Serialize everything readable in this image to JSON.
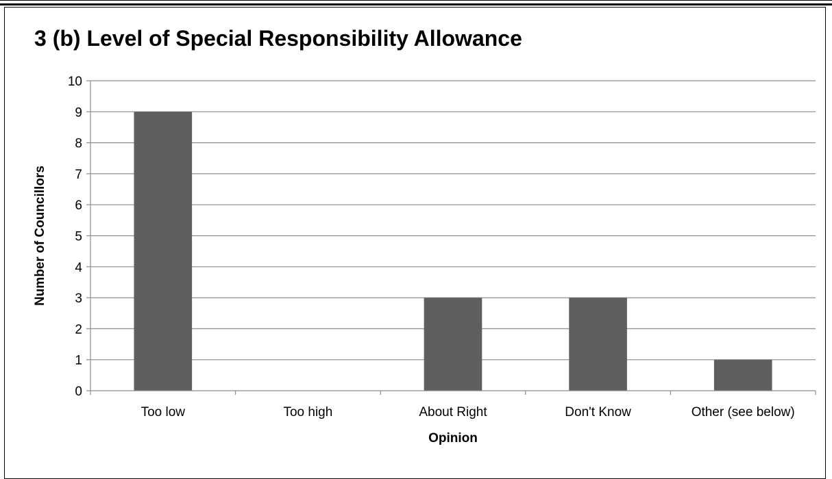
{
  "chart_data": {
    "type": "bar",
    "title": "3 (b) Level of Special Responsibility Allowance",
    "xlabel": "Opinion",
    "ylabel": "Number of Councillors",
    "categories": [
      "Too low",
      "Too high",
      "About Right",
      "Don't Know",
      "Other (see below)"
    ],
    "values": [
      9,
      0,
      3,
      3,
      1
    ],
    "ylim": [
      0,
      10
    ],
    "yticks": [
      "0",
      "1",
      "2",
      "3",
      "4",
      "5",
      "6",
      "7",
      "8",
      "9",
      "10"
    ],
    "grid": true,
    "legend": "none",
    "bar_color": "#5f5f5f"
  }
}
